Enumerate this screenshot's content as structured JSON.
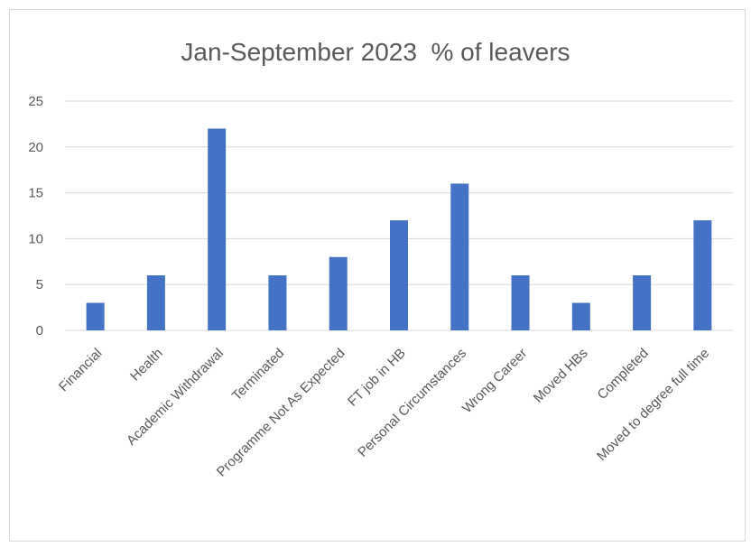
{
  "chart_data": {
    "type": "bar",
    "title": "Jan-September 2023  % of leavers",
    "xlabel": "",
    "ylabel": "",
    "ylim": [
      0,
      25
    ],
    "yticks": [
      0,
      5,
      10,
      15,
      20,
      25
    ],
    "grid": true,
    "legend": "none",
    "bar_color": "#4472c4",
    "grid_color": "#d9d9d9",
    "categories": [
      "Financial",
      "Health",
      "Academic Withdrawal",
      "Terminated",
      "Programme Not As Expected",
      "FT job in HB",
      "Personal Circumstances",
      "Wrong Career",
      "Moved HBs",
      "Completed",
      "Moved to degree full time"
    ],
    "values": [
      3,
      6,
      22,
      6,
      8,
      12,
      16,
      6,
      3,
      6,
      12
    ]
  }
}
